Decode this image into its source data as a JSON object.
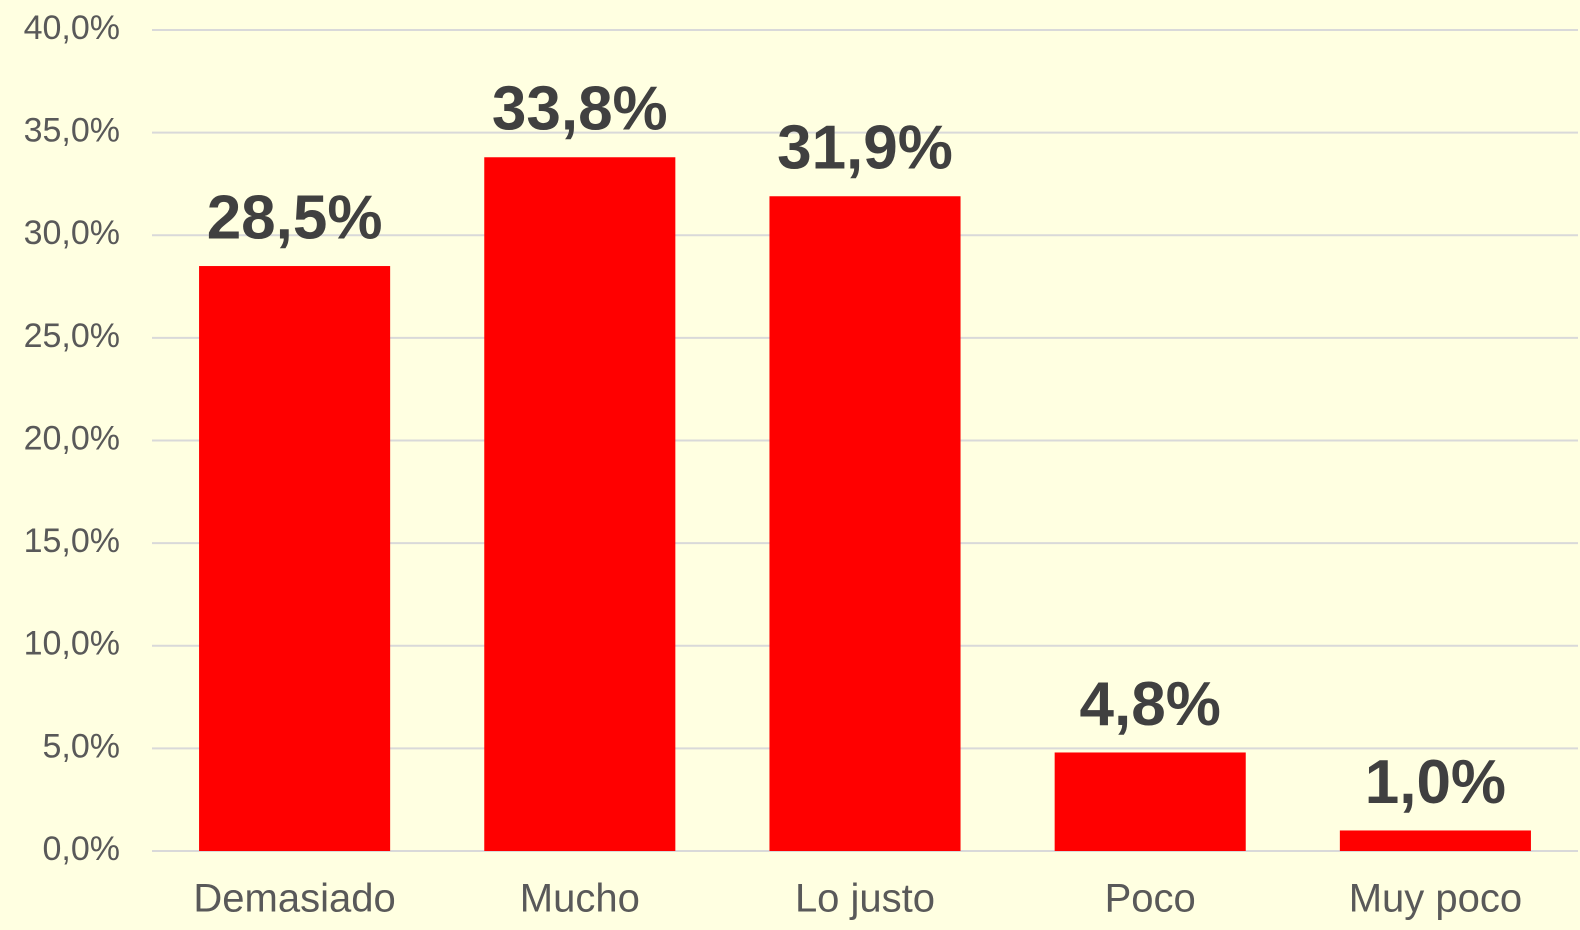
{
  "chart_data": {
    "type": "bar",
    "categories": [
      "Demasiado",
      "Mucho",
      "Lo justo",
      "Poco",
      "Muy poco"
    ],
    "values": [
      28.5,
      33.8,
      31.9,
      4.8,
      1.0
    ],
    "value_labels": [
      "28,5%",
      "33,8%",
      "31,9%",
      "4,8%",
      "1,0%"
    ],
    "color": "#ff0000",
    "ylim": [
      0,
      40
    ],
    "yticks": [
      {
        "value": 0,
        "label": "0,0%"
      },
      {
        "value": 5,
        "label": "5,0%"
      },
      {
        "value": 10,
        "label": "10,0%"
      },
      {
        "value": 15,
        "label": "15,0%"
      },
      {
        "value": 20,
        "label": "20,0%"
      },
      {
        "value": 25,
        "label": "25,0%"
      },
      {
        "value": 30,
        "label": "30,0%"
      },
      {
        "value": 35,
        "label": "35,0%"
      },
      {
        "value": 40,
        "label": "40,0%"
      }
    ],
    "grid": true
  }
}
